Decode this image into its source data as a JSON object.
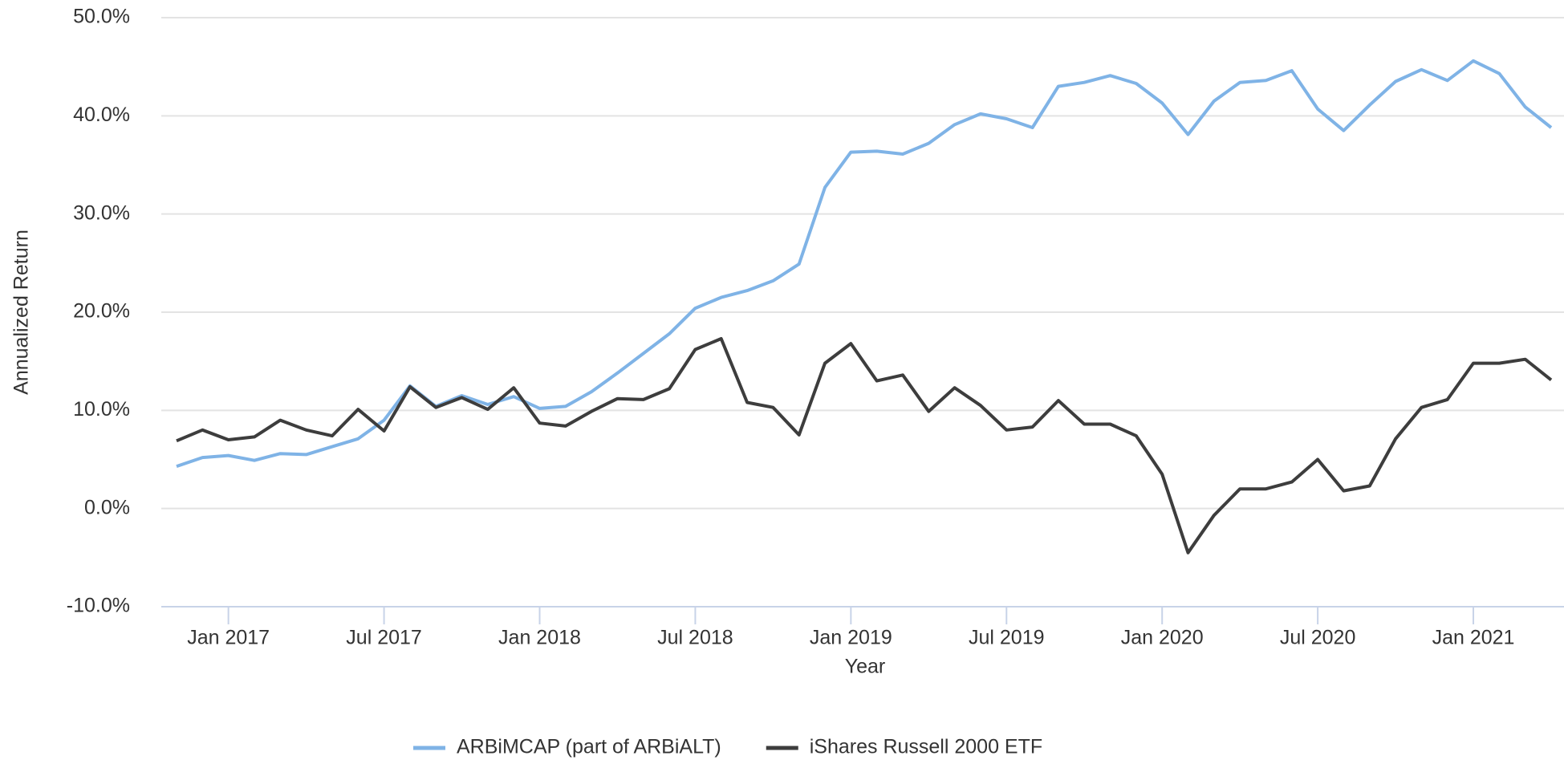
{
  "chart_data": {
    "type": "line",
    "y_label": "Annualized Return",
    "x_label": "Year",
    "x": [
      "2016-11",
      "2016-12",
      "2017-01",
      "2017-02",
      "2017-03",
      "2017-04",
      "2017-05",
      "2017-06",
      "2017-07",
      "2017-08",
      "2017-09",
      "2017-10",
      "2017-11",
      "2017-12",
      "2018-01",
      "2018-02",
      "2018-03",
      "2018-04",
      "2018-05",
      "2018-06",
      "2018-07",
      "2018-08",
      "2018-09",
      "2018-10",
      "2018-11",
      "2018-12",
      "2019-01",
      "2019-02",
      "2019-03",
      "2019-04",
      "2019-05",
      "2019-06",
      "2019-07",
      "2019-08",
      "2019-09",
      "2019-10",
      "2019-11",
      "2019-12",
      "2020-01",
      "2020-02",
      "2020-03",
      "2020-04",
      "2020-05",
      "2020-06",
      "2020-07",
      "2020-08",
      "2020-09",
      "2020-10",
      "2020-11",
      "2020-12",
      "2021-01",
      "2021-02",
      "2021-03",
      "2021-04"
    ],
    "series": [
      {
        "name": "ARBiMCAP (part of ARBiALT)",
        "color": "#7fb3e6",
        "values": [
          4.3,
          5.2,
          5.4,
          4.9,
          5.6,
          5.5,
          6.3,
          7.1,
          9.0,
          12.5,
          10.4,
          11.5,
          10.6,
          11.4,
          10.2,
          10.4,
          11.9,
          13.8,
          15.8,
          17.8,
          20.4,
          21.5,
          22.2,
          23.2,
          24.9,
          32.7,
          36.3,
          36.4,
          36.1,
          37.2,
          39.1,
          40.2,
          39.7,
          38.8,
          43.0,
          43.4,
          44.1,
          43.3,
          41.3,
          38.1,
          41.5,
          43.4,
          43.6,
          44.6,
          40.7,
          38.5,
          41.1,
          43.5,
          44.7,
          43.6,
          45.6,
          44.3,
          40.9,
          38.8
        ]
      },
      {
        "name": "iShares Russell 2000 ETF",
        "color": "#3d3d3d",
        "values": [
          6.9,
          8.0,
          7.0,
          7.3,
          9.0,
          8.0,
          7.4,
          10.1,
          7.9,
          12.4,
          10.3,
          11.3,
          10.1,
          12.3,
          8.7,
          8.4,
          9.9,
          11.2,
          11.1,
          12.2,
          16.2,
          17.3,
          10.8,
          10.3,
          7.5,
          14.8,
          16.8,
          13.0,
          13.6,
          9.9,
          12.3,
          10.5,
          8.0,
          8.3,
          11.0,
          8.6,
          8.6,
          7.4,
          3.5,
          -4.5,
          -0.7,
          2.0,
          2.0,
          2.7,
          5.0,
          1.8,
          2.3,
          7.1,
          10.3,
          11.1,
          14.8,
          14.8,
          15.2,
          13.1
        ]
      }
    ],
    "ylim": [
      -10,
      50
    ],
    "yticks": [
      {
        "value": -10,
        "label": "-10.0%"
      },
      {
        "value": 0,
        "label": "0.0%"
      },
      {
        "value": 10,
        "label": "10.0%"
      },
      {
        "value": 20,
        "label": "20.0%"
      },
      {
        "value": 30,
        "label": "30.0%"
      },
      {
        "value": 40,
        "label": "40.0%"
      },
      {
        "value": 50,
        "label": "50.0%"
      }
    ],
    "xticks": [
      {
        "value": "2017-01",
        "label": "Jan 2017"
      },
      {
        "value": "2017-07",
        "label": "Jul 2017"
      },
      {
        "value": "2018-01",
        "label": "Jan 2018"
      },
      {
        "value": "2018-07",
        "label": "Jul 2018"
      },
      {
        "value": "2019-01",
        "label": "Jan 2019"
      },
      {
        "value": "2019-07",
        "label": "Jul 2019"
      },
      {
        "value": "2020-01",
        "label": "Jan 2020"
      },
      {
        "value": "2020-07",
        "label": "Jul 2020"
      },
      {
        "value": "2021-01",
        "label": "Jan 2021"
      }
    ],
    "grid": true,
    "legend": "bottom"
  }
}
